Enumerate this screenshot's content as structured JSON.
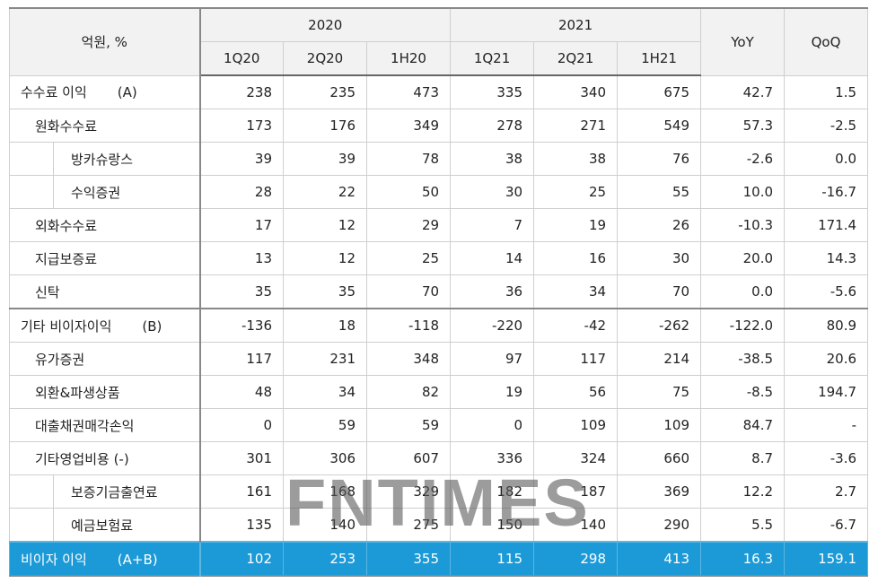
{
  "header": {
    "corner": "억원, %",
    "groups": [
      "2020",
      "2021"
    ],
    "periods": [
      "1Q20",
      "2Q20",
      "1H20",
      "1Q21",
      "2Q21",
      "1H21"
    ],
    "extra": [
      "YoY",
      "QoQ"
    ]
  },
  "rows": [
    {
      "label": "수수료 이익",
      "tag": "(A)",
      "cells": [
        "238",
        "235",
        "473",
        "335",
        "340",
        "675",
        "42.7",
        "1.5"
      ]
    },
    {
      "label": "원화수수료",
      "cells": [
        "173",
        "176",
        "349",
        "278",
        "271",
        "549",
        "57.3",
        "-2.5"
      ]
    },
    {
      "label": "방카슈랑스",
      "cells": [
        "39",
        "39",
        "78",
        "38",
        "38",
        "76",
        "-2.6",
        "0.0"
      ]
    },
    {
      "label": "수익증권",
      "cells": [
        "28",
        "22",
        "50",
        "30",
        "25",
        "55",
        "10.0",
        "-16.7"
      ]
    },
    {
      "label": "외화수수료",
      "cells": [
        "17",
        "12",
        "29",
        "7",
        "19",
        "26",
        "-10.3",
        "171.4"
      ]
    },
    {
      "label": "지급보증료",
      "cells": [
        "13",
        "12",
        "25",
        "14",
        "16",
        "30",
        "20.0",
        "14.3"
      ]
    },
    {
      "label": "신탁",
      "cells": [
        "35",
        "35",
        "70",
        "36",
        "34",
        "70",
        "0.0",
        "-5.6"
      ]
    },
    {
      "label": "기타 비이자이익",
      "tag": "(B)",
      "cells": [
        "-136",
        "18",
        "-118",
        "-220",
        "-42",
        "-262",
        "-122.0",
        "80.9"
      ]
    },
    {
      "label": "유가증권",
      "cells": [
        "117",
        "231",
        "348",
        "97",
        "117",
        "214",
        "-38.5",
        "20.6"
      ]
    },
    {
      "label": "외환&파생상품",
      "cells": [
        "48",
        "34",
        "82",
        "19",
        "56",
        "75",
        "-8.5",
        "194.7"
      ]
    },
    {
      "label": "대출채권매각손익",
      "cells": [
        "0",
        "59",
        "59",
        "0",
        "109",
        "109",
        "84.7",
        "-"
      ]
    },
    {
      "label": "기타영업비용 (-)",
      "cells": [
        "301",
        "306",
        "607",
        "336",
        "324",
        "660",
        "8.7",
        "-3.6"
      ]
    },
    {
      "label": "보증기금출연료",
      "cells": [
        "161",
        "168",
        "329",
        "182",
        "187",
        "369",
        "12.2",
        "2.7"
      ]
    },
    {
      "label": "예금보험료",
      "cells": [
        "135",
        "140",
        "275",
        "150",
        "140",
        "290",
        "5.5",
        "-6.7"
      ]
    }
  ],
  "total": {
    "label": "비이자 이익",
    "tag": "(A+B)",
    "cells": [
      "102",
      "253",
      "355",
      "115",
      "298",
      "413",
      "16.3",
      "159.1"
    ]
  },
  "watermark": "FNTIMES"
}
